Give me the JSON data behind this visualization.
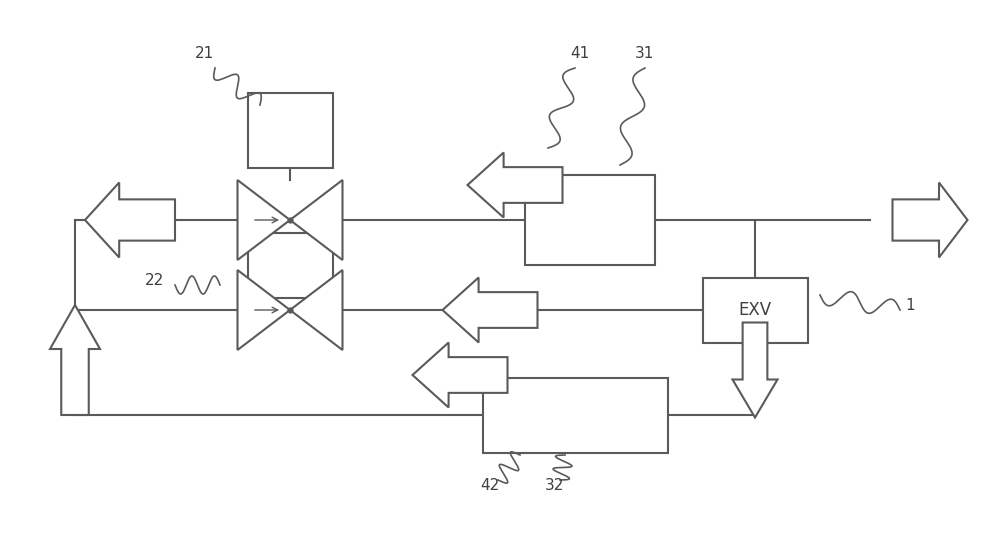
{
  "bg_color": "#ffffff",
  "line_color": "#5a5a5a",
  "lw": 1.5,
  "fig_w": 10.0,
  "fig_h": 5.36,
  "label_fs": 11,
  "label_color": "#404040",
  "exv_text": "EXV",
  "exv_fs": 12
}
